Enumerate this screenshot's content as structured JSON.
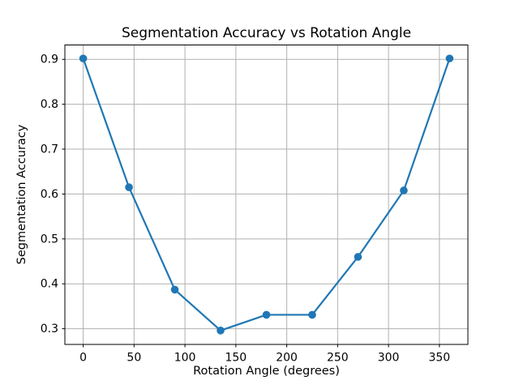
{
  "chart_data": {
    "type": "line",
    "title": "Segmentation Accuracy vs Rotation Angle",
    "xlabel": "Rotation Angle (degrees)",
    "ylabel": "Segmentation Accuracy",
    "x": [
      0,
      45,
      90,
      135,
      180,
      225,
      270,
      315,
      360
    ],
    "y": [
      0.902,
      0.615,
      0.387,
      0.296,
      0.331,
      0.331,
      0.46,
      0.608,
      0.902
    ],
    "x_ticks": [
      0,
      50,
      100,
      150,
      200,
      250,
      300,
      350
    ],
    "x_tick_labels": [
      "0",
      "50",
      "100",
      "150",
      "200",
      "250",
      "300",
      "350"
    ],
    "y_ticks": [
      0.3,
      0.4,
      0.5,
      0.6,
      0.7,
      0.8,
      0.9
    ],
    "y_tick_labels": [
      "0.3",
      "0.4",
      "0.5",
      "0.6",
      "0.7",
      "0.8",
      "0.9"
    ],
    "xlim": [
      -18,
      378
    ],
    "ylim": [
      0.265,
      0.932
    ],
    "grid": true,
    "legend_position": "none",
    "line_color": "#1f77b4",
    "marker": "o",
    "marker_color": "#1f77b4",
    "grid_color": "#b0b0b0",
    "spine_color": "#000000",
    "background": "#ffffff"
  }
}
